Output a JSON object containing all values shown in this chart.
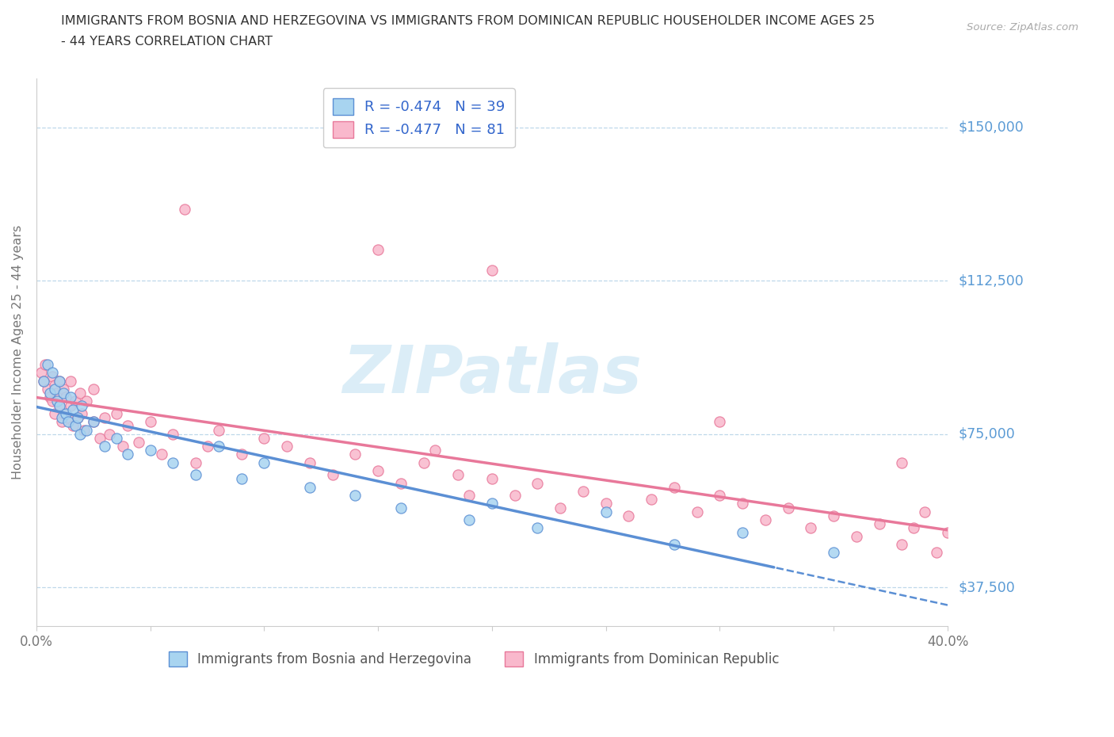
{
  "title_line1": "IMMIGRANTS FROM BOSNIA AND HERZEGOVINA VS IMMIGRANTS FROM DOMINICAN REPUBLIC HOUSEHOLDER INCOME AGES 25",
  "title_line2": "- 44 YEARS CORRELATION CHART",
  "source": "Source: ZipAtlas.com",
  "ylabel": "Householder Income Ages 25 - 44 years",
  "xlim": [
    0.0,
    0.4
  ],
  "ylim": [
    28000,
    162000
  ],
  "yticks": [
    37500,
    75000,
    112500,
    150000
  ],
  "ytick_labels": [
    "$37,500",
    "$75,000",
    "$112,500",
    "$150,000"
  ],
  "xticks": [
    0.0,
    0.05,
    0.1,
    0.15,
    0.2,
    0.25,
    0.3,
    0.35,
    0.4
  ],
  "bosnia_color": "#A8D4F0",
  "dominican_color": "#F9B8CC",
  "bosnia_edge_color": "#5B8FD4",
  "dominican_edge_color": "#E8789A",
  "trend_bosnia_color": "#5B8FD4",
  "trend_dominican_color": "#E8789A",
  "legend_bosnia_label": "R = -0.474   N = 39",
  "legend_dominican_label": "R = -0.477   N = 81",
  "legend_label1": "Immigrants from Bosnia and Herzegovina",
  "legend_label2": "Immigrants from Dominican Republic",
  "ytick_color": "#5B9BD5",
  "grid_color": "#B8D4E8",
  "title_color": "#333333",
  "axis_label_color": "#777777",
  "bosnia_x": [
    0.003,
    0.005,
    0.006,
    0.007,
    0.008,
    0.009,
    0.01,
    0.01,
    0.011,
    0.012,
    0.013,
    0.014,
    0.015,
    0.016,
    0.017,
    0.018,
    0.019,
    0.02,
    0.022,
    0.025,
    0.03,
    0.035,
    0.04,
    0.05,
    0.06,
    0.07,
    0.08,
    0.09,
    0.1,
    0.12,
    0.14,
    0.16,
    0.19,
    0.2,
    0.22,
    0.25,
    0.28,
    0.31,
    0.35
  ],
  "bosnia_y": [
    88000,
    92000,
    85000,
    90000,
    86000,
    83000,
    88000,
    82000,
    79000,
    85000,
    80000,
    78000,
    84000,
    81000,
    77000,
    79000,
    75000,
    82000,
    76000,
    78000,
    72000,
    74000,
    70000,
    71000,
    68000,
    65000,
    72000,
    64000,
    68000,
    62000,
    60000,
    57000,
    54000,
    58000,
    52000,
    56000,
    48000,
    51000,
    46000
  ],
  "dominican_x": [
    0.002,
    0.003,
    0.004,
    0.005,
    0.006,
    0.007,
    0.007,
    0.008,
    0.008,
    0.009,
    0.01,
    0.01,
    0.011,
    0.012,
    0.012,
    0.013,
    0.014,
    0.015,
    0.015,
    0.016,
    0.017,
    0.018,
    0.019,
    0.02,
    0.021,
    0.022,
    0.025,
    0.025,
    0.028,
    0.03,
    0.032,
    0.035,
    0.038,
    0.04,
    0.045,
    0.05,
    0.055,
    0.06,
    0.065,
    0.07,
    0.075,
    0.08,
    0.09,
    0.1,
    0.11,
    0.12,
    0.13,
    0.14,
    0.15,
    0.16,
    0.17,
    0.175,
    0.185,
    0.19,
    0.2,
    0.21,
    0.22,
    0.23,
    0.24,
    0.25,
    0.26,
    0.27,
    0.28,
    0.29,
    0.3,
    0.31,
    0.32,
    0.33,
    0.34,
    0.35,
    0.36,
    0.37,
    0.38,
    0.385,
    0.39,
    0.395,
    0.4,
    0.15,
    0.3,
    0.38,
    0.2
  ],
  "dominican_y": [
    90000,
    88000,
    92000,
    86000,
    84000,
    89000,
    83000,
    87000,
    80000,
    85000,
    88000,
    82000,
    78000,
    86000,
    80000,
    84000,
    79000,
    88000,
    82000,
    77000,
    83000,
    79000,
    85000,
    80000,
    76000,
    83000,
    78000,
    86000,
    74000,
    79000,
    75000,
    80000,
    72000,
    77000,
    73000,
    78000,
    70000,
    75000,
    130000,
    68000,
    72000,
    76000,
    70000,
    74000,
    72000,
    68000,
    65000,
    70000,
    66000,
    63000,
    68000,
    71000,
    65000,
    60000,
    64000,
    60000,
    63000,
    57000,
    61000,
    58000,
    55000,
    59000,
    62000,
    56000,
    60000,
    58000,
    54000,
    57000,
    52000,
    55000,
    50000,
    53000,
    48000,
    52000,
    56000,
    46000,
    51000,
    120000,
    78000,
    68000,
    115000
  ]
}
